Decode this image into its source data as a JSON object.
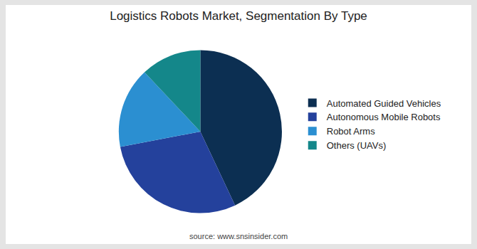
{
  "chart_data": {
    "type": "pie",
    "title": "Logistics Robots Market, Segmentation By Type",
    "categories": [
      "Automated Guided Vehicles",
      "Autonomous Mobile Robots",
      "Robot Arms",
      "Others (UAVs)"
    ],
    "values": [
      43,
      29,
      16,
      12
    ],
    "colors": [
      "#0c2f52",
      "#24419c",
      "#2b8fd1",
      "#14878a"
    ],
    "legend": "right",
    "data_labels": false,
    "annotations": [
      "source: www.snsinsider.com"
    ]
  }
}
